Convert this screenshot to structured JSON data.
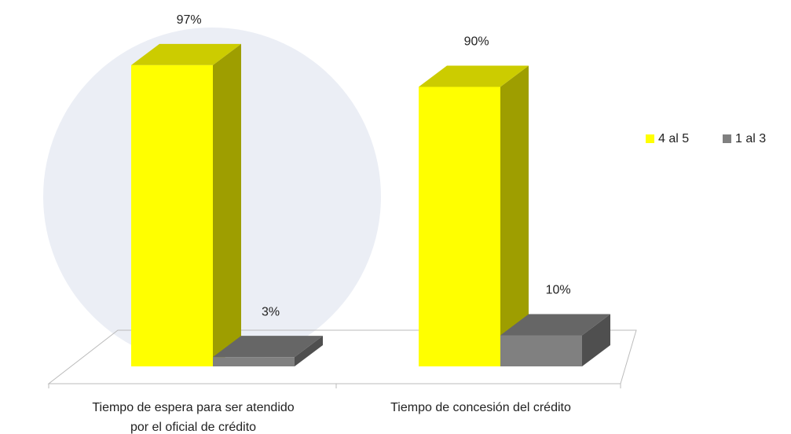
{
  "chart_data": {
    "type": "bar3d",
    "categories": [
      "Tiempo de espera para ser atendido por el oficial de crédito",
      "Tiempo de concesión del crédito"
    ],
    "series": [
      {
        "name": "4 al 5",
        "color": "#ffff00",
        "values": [
          97,
          90
        ],
        "value_labels": [
          "97%",
          "90%"
        ]
      },
      {
        "name": "1 al 3",
        "color": "#808080",
        "values": [
          3,
          10
        ],
        "value_labels": [
          "3%",
          "10%"
        ]
      }
    ],
    "legend": "right"
  }
}
